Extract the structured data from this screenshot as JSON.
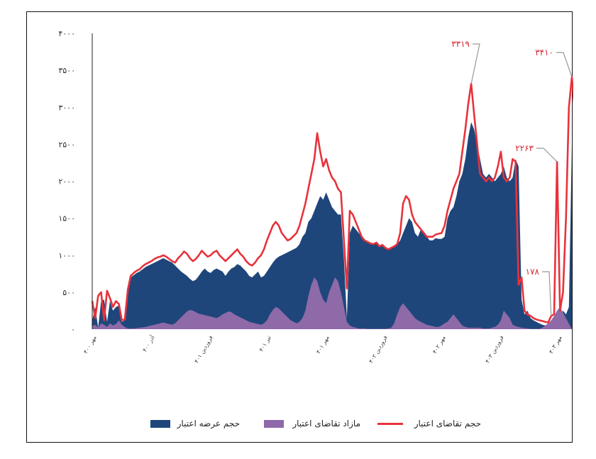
{
  "chart_data": {
    "type": "area",
    "title": "",
    "xlabel": "",
    "ylabel": "",
    "ylim": [
      0,
      4000
    ],
    "y_tick_labels": [
      "۰",
      "۵۰۰",
      "۱۰۰۰",
      "۱۵۰۰",
      "۲۰۰۰",
      "۲۵۰۰",
      "۳۰۰۰",
      "۳۵۰۰",
      "۴۰۰۰"
    ],
    "grid": false,
    "legend_position": "bottom",
    "colors": {
      "supply": "#1f467b",
      "excess": "#8e6aa8",
      "demand": "#e8323c",
      "annotation_line": "#999999",
      "annotation_text": "#d4252f"
    },
    "series": [
      {
        "name": "حجم عرضه اعتبار",
        "type": "area",
        "values": [
          120,
          300,
          20,
          380,
          400,
          100,
          380,
          250,
          300,
          320,
          100,
          120,
          520,
          700,
          730,
          760,
          780,
          810,
          840,
          860,
          880,
          900,
          920,
          940,
          960,
          940,
          920,
          900,
          860,
          820,
          780,
          750,
          720,
          680,
          650,
          670,
          720,
          780,
          820,
          780,
          760,
          800,
          820,
          800,
          780,
          720,
          780,
          820,
          840,
          880,
          860,
          820,
          780,
          720,
          700,
          740,
          780,
          700,
          720,
          780,
          840,
          900,
          950,
          980,
          1000,
          1020,
          1040,
          1060,
          1080,
          1100,
          1150,
          1250,
          1300,
          1450,
          1500,
          1600,
          1700,
          1800,
          1750,
          1850,
          1750,
          1650,
          1600,
          1550,
          1550,
          950,
          150,
          1300,
          1400,
          1350,
          1300,
          1250,
          1200,
          1180,
          1160,
          1150,
          1170,
          1120,
          1140,
          1100,
          1080,
          1100,
          1120,
          1150,
          1200,
          1300,
          1400,
          1500,
          1450,
          1300,
          1250,
          1350,
          1300,
          1250,
          1200,
          1200,
          1230,
          1220,
          1220,
          1250,
          1500,
          1600,
          1650,
          1800,
          2000,
          2100,
          2300,
          2600,
          2800,
          2700,
          2500,
          2300,
          2100,
          2050,
          2100,
          2050,
          2000,
          2050,
          2100,
          2200,
          2050,
          2000,
          2050,
          2300,
          2200,
          400,
          200,
          250,
          150,
          120,
          100,
          80,
          60,
          50,
          40,
          30,
          20,
          20,
          100,
          250,
          200,
          300,
          2500
        ],
        "labels_shown": [
          "۴۰۰ مهر",
          "۴۰۰ آذر",
          "۴۰۱ فروردین",
          "۴۰۱ تیر",
          "۴۰۱ مهر",
          "۴۰۲ فروردین",
          "۴۰۲ مهر",
          "۴۰۳ فروردین",
          "۴۰۳ مهر"
        ]
      },
      {
        "name": "مازاد تقاضای اعتبار",
        "type": "area",
        "values": [
          40,
          60,
          20,
          80,
          60,
          30,
          80,
          50,
          70,
          120,
          60,
          30,
          10,
          10,
          10,
          15,
          20,
          25,
          30,
          40,
          50,
          60,
          70,
          80,
          90,
          80,
          70,
          60,
          80,
          120,
          160,
          200,
          240,
          260,
          250,
          230,
          210,
          200,
          190,
          180,
          170,
          160,
          150,
          170,
          200,
          220,
          240,
          230,
          200,
          180,
          160,
          140,
          120,
          100,
          90,
          80,
          70,
          60,
          80,
          120,
          200,
          260,
          300,
          280,
          240,
          200,
          160,
          120,
          100,
          80,
          100,
          150,
          250,
          450,
          600,
          700,
          650,
          500,
          400,
          350,
          500,
          600,
          700,
          650,
          500,
          300,
          100,
          50,
          30,
          20,
          10,
          10,
          10,
          5,
          5,
          5,
          5,
          5,
          5,
          5,
          10,
          20,
          80,
          200,
          300,
          350,
          300,
          250,
          200,
          150,
          120,
          100,
          80,
          60,
          50,
          40,
          30,
          30,
          50,
          80,
          100,
          150,
          200,
          150,
          100,
          50,
          30,
          20,
          20,
          20,
          20,
          20,
          10,
          10,
          10,
          20,
          30,
          60,
          120,
          250,
          200,
          150,
          60,
          40,
          30,
          20,
          15,
          10,
          5,
          5,
          5,
          5,
          20,
          50,
          80,
          120,
          180,
          250,
          300
        ],
        "labels_shown": []
      },
      {
        "name": "حجم تقاضای اعتبار",
        "type": "line",
        "values": [
          380,
          150,
          450,
          500,
          120,
          520,
          420,
          300,
          380,
          340,
          120,
          130,
          530,
          720,
          760,
          790,
          810,
          850,
          880,
          900,
          920,
          950,
          970,
          980,
          1000,
          980,
          950,
          920,
          900,
          960,
          1000,
          1050,
          1020,
          960,
          920,
          950,
          1000,
          1060,
          1020,
          980,
          1000,
          1040,
          1060,
          1000,
          960,
          920,
          960,
          1000,
          1040,
          1080,
          1020,
          980,
          920,
          880,
          860,
          900,
          960,
          1000,
          1080,
          1200,
          1300,
          1400,
          1450,
          1400,
          1300,
          1250,
          1200,
          1220,
          1260,
          1300,
          1400,
          1550,
          1700,
          1900,
          2100,
          2300,
          2650,
          2400,
          2200,
          2300,
          2150,
          2050,
          2000,
          1900,
          1850,
          1200,
          550,
          1600,
          1550,
          1450,
          1350,
          1250,
          1200,
          1180,
          1160,
          1150,
          1170,
          1120,
          1140,
          1100,
          1080,
          1100,
          1120,
          1150,
          1300,
          1700,
          1800,
          1750,
          1550,
          1450,
          1400,
          1350,
          1300,
          1250,
          1250,
          1250,
          1280,
          1290,
          1300,
          1400,
          1600,
          1750,
          1900,
          2000,
          2100,
          2400,
          2700,
          3050,
          3319,
          2900,
          2500,
          2100,
          2050,
          2000,
          2050,
          2000,
          2050,
          2200,
          2400,
          2050,
          2000,
          2050,
          2300,
          2263,
          600,
          700,
          250,
          200,
          180,
          150,
          130,
          120,
          110,
          100,
          90,
          178,
          200,
          2263,
          250,
          500,
          1500,
          3000,
          3410,
          2950
        ],
        "labels_shown": []
      }
    ],
    "annotations": [
      "۳۳۱۹",
      "۳۴۱۰",
      "۲۲۶۳",
      "۱۷۸"
    ]
  }
}
